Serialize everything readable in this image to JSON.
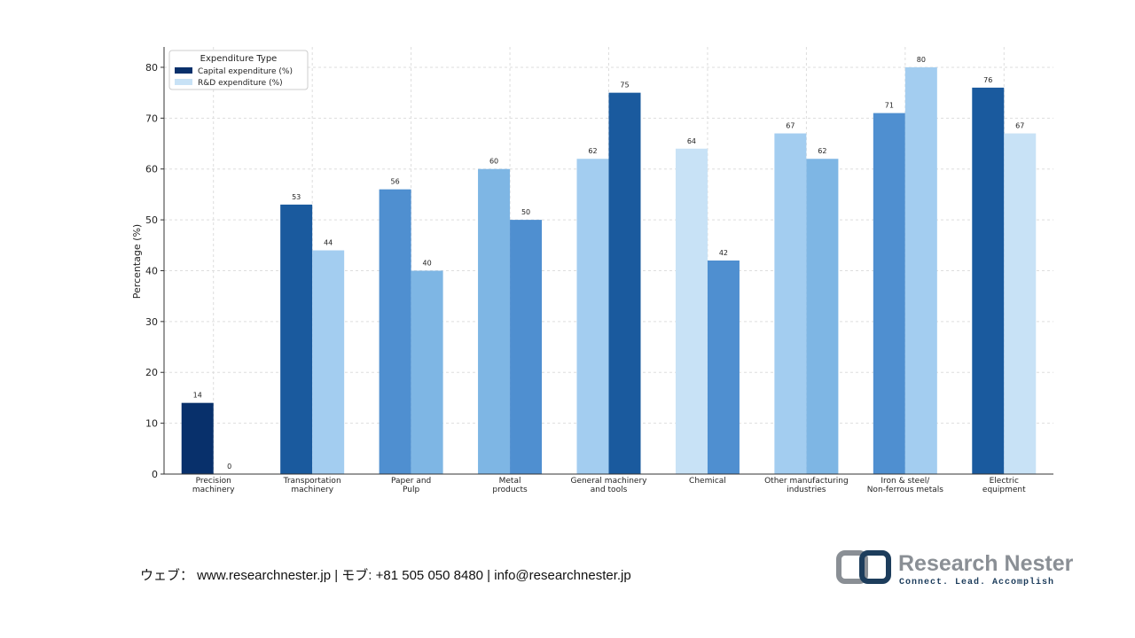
{
  "chart_data": {
    "type": "bar",
    "y_label": "Percentage (%)",
    "categories": [
      "Precision\nmachinery",
      "Transportation\nmachinery",
      "Paper and\nPulp",
      "Metal\nproducts",
      "General machinery\nand tools",
      "Chemical",
      "Other manufacturing\nindustries",
      "Iron & steel/\nNon-ferrous metals",
      "Electric\nequipment"
    ],
    "series": [
      {
        "name": "Capital expenditure (%)",
        "color": "#08306b",
        "values": [
          14,
          53,
          56,
          60,
          62,
          64,
          67,
          71,
          76
        ],
        "colors": [
          "#08306b",
          "#1a5a9e",
          "#4f8fd0",
          "#7eb6e4",
          "#a3cdf0",
          "#c8e2f6",
          "#a3cdf0",
          "#4f8fd0",
          "#1a5a9e"
        ]
      },
      {
        "name": "R&D expenditure (%)",
        "color": "#c8e2f6",
        "values": [
          0,
          44,
          40,
          50,
          75,
          42,
          62,
          80,
          67
        ],
        "colors": [
          "#c8e2f6",
          "#a3cdf0",
          "#7eb6e4",
          "#4f8fd0",
          "#1a5a9e",
          "#4f8fd0",
          "#7eb6e4",
          "#a3cdf0",
          "#c8e2f6"
        ]
      }
    ],
    "legend_title": "Expenditure Type",
    "legend": "upper left",
    "ylim": [
      0,
      84
    ],
    "yticks": [
      0,
      10,
      20,
      30,
      40,
      50,
      60,
      70,
      80
    ],
    "grid": true
  },
  "footer": {
    "contact": "ウェブ：  www.researchnester.jp   | モブ: +81 505 050 8480 | info@researchnester.jp",
    "brand": "Research Nester",
    "tagline": "Connect. Lead. Accomplish"
  }
}
